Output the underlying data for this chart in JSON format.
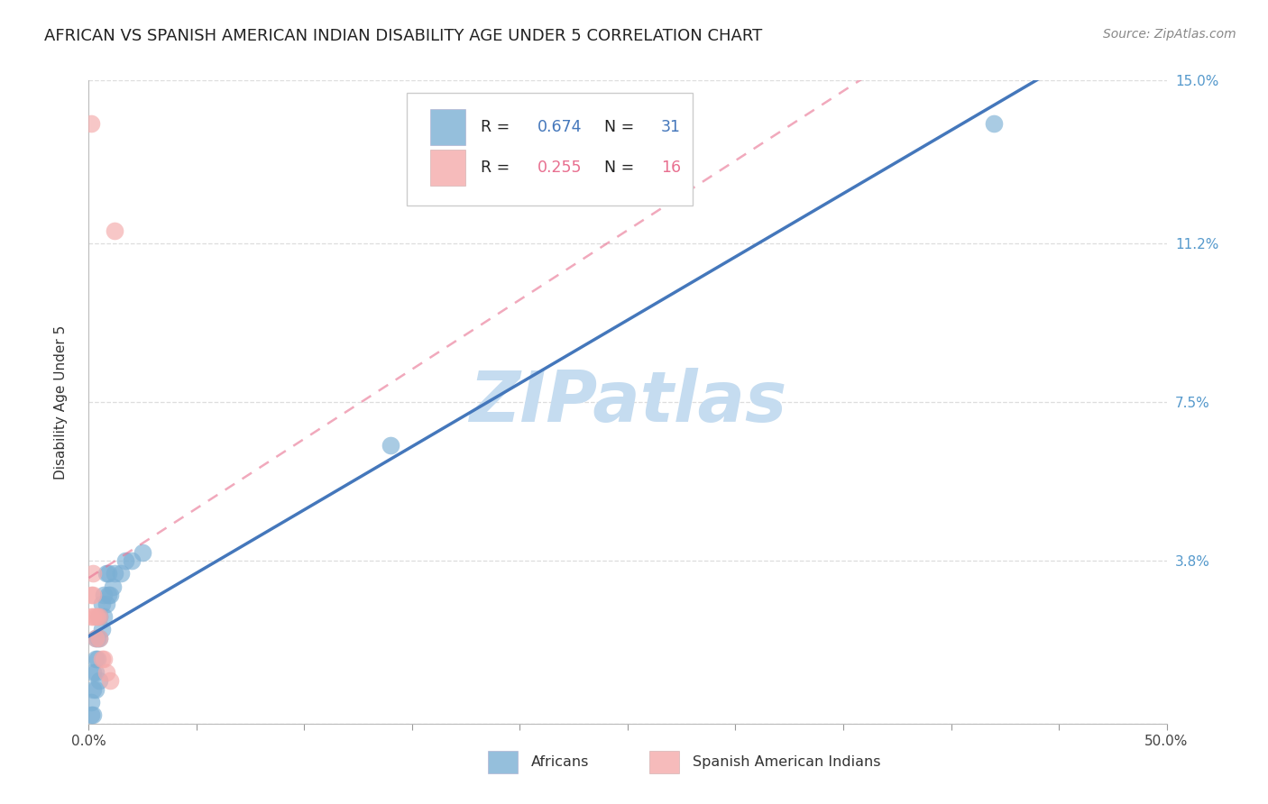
{
  "title": "AFRICAN VS SPANISH AMERICAN INDIAN DISABILITY AGE UNDER 5 CORRELATION CHART",
  "source": "Source: ZipAtlas.com",
  "ylabel": "Disability Age Under 5",
  "xlim": [
    0,
    0.5
  ],
  "ylim": [
    0,
    0.15
  ],
  "yticks": [
    0.0,
    0.038,
    0.075,
    0.112,
    0.15
  ],
  "ytick_labels": [
    "",
    "3.8%",
    "7.5%",
    "11.2%",
    "15.0%"
  ],
  "xticks": [
    0.0,
    0.05,
    0.1,
    0.15,
    0.2,
    0.25,
    0.3,
    0.35,
    0.4,
    0.45,
    0.5
  ],
  "xtick_labels": [
    "0.0%",
    "",
    "",
    "",
    "",
    "",
    "",
    "",
    "",
    "",
    "50.0%"
  ],
  "african_x": [
    0.001,
    0.001,
    0.002,
    0.002,
    0.002,
    0.003,
    0.003,
    0.003,
    0.003,
    0.004,
    0.004,
    0.005,
    0.005,
    0.005,
    0.006,
    0.006,
    0.007,
    0.007,
    0.008,
    0.008,
    0.009,
    0.009,
    0.01,
    0.011,
    0.012,
    0.015,
    0.017,
    0.02,
    0.025,
    0.14,
    0.42
  ],
  "african_y": [
    0.002,
    0.005,
    0.002,
    0.008,
    0.012,
    0.008,
    0.012,
    0.015,
    0.02,
    0.015,
    0.02,
    0.01,
    0.02,
    0.025,
    0.022,
    0.028,
    0.025,
    0.03,
    0.028,
    0.035,
    0.03,
    0.035,
    0.03,
    0.032,
    0.035,
    0.035,
    0.038,
    0.038,
    0.04,
    0.065,
    0.14
  ],
  "spanish_x": [
    0.001,
    0.001,
    0.001,
    0.002,
    0.002,
    0.002,
    0.003,
    0.003,
    0.004,
    0.005,
    0.005,
    0.006,
    0.007,
    0.008,
    0.01,
    0.012
  ],
  "spanish_y": [
    0.14,
    0.03,
    0.025,
    0.035,
    0.03,
    0.025,
    0.025,
    0.02,
    0.025,
    0.02,
    0.025,
    0.015,
    0.015,
    0.012,
    0.01,
    0.115
  ],
  "african_R": 0.674,
  "african_N": 31,
  "spanish_R": 0.255,
  "spanish_N": 16,
  "african_color": "#7BAFD4",
  "spanish_color": "#F4AAAA",
  "regression_blue": "#4477BB",
  "regression_pink": "#E87090",
  "watermark": "ZIPatlas",
  "watermark_color": "#C5DCF0",
  "background_color": "#FFFFFF",
  "title_fontsize": 13,
  "axis_label_fontsize": 11,
  "tick_fontsize": 11,
  "source_fontsize": 10
}
